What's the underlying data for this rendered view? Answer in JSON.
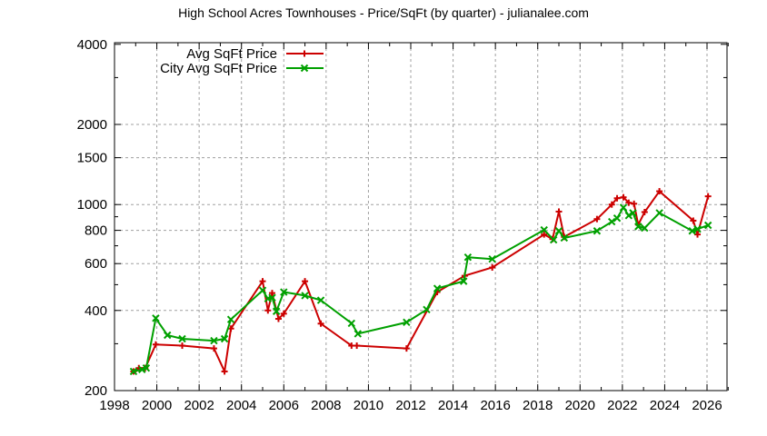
{
  "chart_data": {
    "type": "line",
    "title": "High School Acres Townhouses - Price/SqFt (by quarter) - julianalee.com",
    "xlabel": "",
    "ylabel": "",
    "xlim": [
      1998,
      2027
    ],
    "ylim": [
      200,
      4000
    ],
    "yscale": "log",
    "grid": true,
    "legend_position": "top-left",
    "x_ticks": [
      "1998",
      "2000",
      "2002",
      "2004",
      "2006",
      "2008",
      "2010",
      "2012",
      "2014",
      "2016",
      "2018",
      "2020",
      "2022",
      "2024",
      "2026"
    ],
    "y_ticks": [
      "200",
      "400",
      "600",
      "800",
      "1000",
      "1500",
      "2000",
      "4000"
    ],
    "series": [
      {
        "name": "Avg SqFt Price",
        "color": "#cc0000",
        "marker": "+",
        "points": [
          [
            1998.9,
            236
          ],
          [
            1999.15,
            243
          ],
          [
            1999.45,
            243
          ],
          [
            1999.95,
            298
          ],
          [
            2001.2,
            295
          ],
          [
            2002.7,
            288
          ],
          [
            2003.2,
            236
          ],
          [
            2003.5,
            342
          ],
          [
            2005.0,
            515
          ],
          [
            2005.25,
            400
          ],
          [
            2005.45,
            465
          ],
          [
            2005.75,
            372
          ],
          [
            2006.0,
            389
          ],
          [
            2007.0,
            515
          ],
          [
            2007.75,
            357
          ],
          [
            2009.2,
            295
          ],
          [
            2009.45,
            295
          ],
          [
            2011.8,
            288
          ],
          [
            2013.25,
            469
          ],
          [
            2014.55,
            540
          ],
          [
            2015.85,
            580
          ],
          [
            2018.3,
            772
          ],
          [
            2018.7,
            742
          ],
          [
            2019.0,
            941
          ],
          [
            2019.25,
            756
          ],
          [
            2020.8,
            882
          ],
          [
            2021.5,
            1000
          ],
          [
            2021.75,
            1056
          ],
          [
            2022.05,
            1065
          ],
          [
            2022.3,
            1016
          ],
          [
            2022.55,
            1007
          ],
          [
            2022.75,
            840
          ],
          [
            2023.05,
            937
          ],
          [
            2023.75,
            1122
          ],
          [
            2025.35,
            870
          ],
          [
            2025.55,
            772
          ],
          [
            2026.05,
            1074
          ]
        ]
      },
      {
        "name": "City Avg SqFt Price",
        "color": "#00a000",
        "marker": "x",
        "points": [
          [
            1998.9,
            236
          ],
          [
            1999.3,
            240
          ],
          [
            1999.5,
            243
          ],
          [
            1999.95,
            374
          ],
          [
            2000.5,
            323
          ],
          [
            2001.2,
            313
          ],
          [
            2002.7,
            308
          ],
          [
            2003.2,
            313
          ],
          [
            2003.5,
            370
          ],
          [
            2005.0,
            476
          ],
          [
            2005.25,
            443
          ],
          [
            2005.45,
            447
          ],
          [
            2005.65,
            397
          ],
          [
            2006.0,
            469
          ],
          [
            2007.0,
            455
          ],
          [
            2007.75,
            437
          ],
          [
            2009.2,
            358
          ],
          [
            2009.5,
            327
          ],
          [
            2011.8,
            361
          ],
          [
            2012.75,
            403
          ],
          [
            2013.25,
            484
          ],
          [
            2014.5,
            515
          ],
          [
            2014.7,
            634
          ],
          [
            2015.85,
            624
          ],
          [
            2018.3,
            803
          ],
          [
            2018.75,
            737
          ],
          [
            2019.0,
            796
          ],
          [
            2019.25,
            749
          ],
          [
            2020.8,
            796
          ],
          [
            2021.5,
            862
          ],
          [
            2021.75,
            889
          ],
          [
            2022.05,
            975
          ],
          [
            2022.3,
            909
          ],
          [
            2022.5,
            930
          ],
          [
            2022.75,
            827
          ],
          [
            2023.05,
            816
          ],
          [
            2023.75,
            930
          ],
          [
            2025.3,
            796
          ],
          [
            2025.55,
            809
          ],
          [
            2026.05,
            836
          ]
        ]
      }
    ]
  },
  "legend": {
    "items": [
      {
        "label": "Avg SqFt Price",
        "color": "#cc0000"
      },
      {
        "label": "City Avg SqFt Price",
        "color": "#00a000"
      }
    ]
  }
}
